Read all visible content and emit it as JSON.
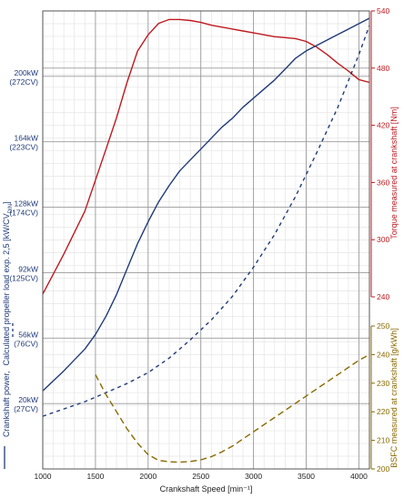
{
  "chart_data": {
    "type": "line",
    "xlabel": "Crankshaft Speed [min⁻¹]",
    "xlim": [
      1000,
      4100
    ],
    "x_ticks": [
      1000,
      1500,
      2000,
      2500,
      3000,
      3500,
      4000
    ],
    "left_axis": {
      "label_part1": "Crankshaft power,",
      "label_part2": "Calculated propeller load exp. 2,5 [kW/CV",
      "label_sub": "DIN",
      "label_close": "]",
      "range_kw": [
        -16,
        236
      ],
      "ticks": [
        {
          "kw": 200,
          "line1": "200kW",
          "line2": "(272CV)"
        },
        {
          "kw": 164,
          "line1": "164kW",
          "line2": "(223CV)"
        },
        {
          "kw": 128,
          "line1": "128kW",
          "line2": "(174CV)"
        },
        {
          "kw": 92,
          "line1": "92kW",
          "line2": "(125CV)"
        },
        {
          "kw": 56,
          "line1": "56kW",
          "line2": "(76CV)"
        },
        {
          "kw": 20,
          "line1": "20kW",
          "line2": "(27CV)"
        }
      ],
      "color": "#1f3a7a"
    },
    "torque_axis": {
      "label": "Torque measured at crankshaft [Nm]",
      "range": [
        240,
        540
      ],
      "ticks": [
        240,
        300,
        360,
        420,
        480,
        540
      ],
      "color": "#c0191f"
    },
    "bsfc_axis": {
      "label": "BSFC measured at crankshaft [g/kWh]",
      "range": [
        200,
        250
      ],
      "ticks": [
        200,
        210,
        220,
        230,
        240,
        250
      ],
      "color": "#8a6a00"
    },
    "series": [
      {
        "axis": "torque",
        "color": "#c0191f",
        "dash": "",
        "points": [
          [
            1000,
            243
          ],
          [
            1200,
            285
          ],
          [
            1400,
            330
          ],
          [
            1600,
            395
          ],
          [
            1700,
            428
          ],
          [
            1800,
            465
          ],
          [
            1900,
            498
          ],
          [
            2000,
            515
          ],
          [
            2100,
            527
          ],
          [
            2200,
            531
          ],
          [
            2300,
            531
          ],
          [
            2400,
            530
          ],
          [
            2500,
            528
          ],
          [
            2600,
            525
          ],
          [
            2700,
            523
          ],
          [
            2800,
            521
          ],
          [
            2900,
            519
          ],
          [
            3000,
            517
          ],
          [
            3100,
            515
          ],
          [
            3200,
            513
          ],
          [
            3300,
            512
          ],
          [
            3400,
            511
          ],
          [
            3500,
            508
          ],
          [
            3600,
            502
          ],
          [
            3700,
            494
          ],
          [
            3800,
            485
          ],
          [
            3900,
            477
          ],
          [
            4000,
            468
          ],
          [
            4100,
            465
          ]
        ]
      },
      {
        "axis": "power",
        "color": "#1f3a7a",
        "dash": "",
        "points": [
          [
            1000,
            27
          ],
          [
            1200,
            38
          ],
          [
            1400,
            50
          ],
          [
            1500,
            58
          ],
          [
            1600,
            68
          ],
          [
            1700,
            80
          ],
          [
            1800,
            94
          ],
          [
            1900,
            108
          ],
          [
            2000,
            120
          ],
          [
            2100,
            131
          ],
          [
            2200,
            140
          ],
          [
            2300,
            148
          ],
          [
            2400,
            154
          ],
          [
            2500,
            160
          ],
          [
            2600,
            166
          ],
          [
            2700,
            172
          ],
          [
            2800,
            177
          ],
          [
            2900,
            183
          ],
          [
            3000,
            188
          ],
          [
            3100,
            193
          ],
          [
            3200,
            198
          ],
          [
            3300,
            204
          ],
          [
            3400,
            210
          ],
          [
            3500,
            214
          ],
          [
            3600,
            217
          ],
          [
            3700,
            220
          ],
          [
            3800,
            223
          ],
          [
            3900,
            226
          ],
          [
            4000,
            229
          ],
          [
            4100,
            232
          ]
        ]
      },
      {
        "axis": "power",
        "color": "#1f3a7a",
        "dash": "4,4",
        "points": [
          [
            1000,
            13
          ],
          [
            1200,
            17
          ],
          [
            1400,
            21
          ],
          [
            1600,
            26
          ],
          [
            1800,
            31
          ],
          [
            2000,
            37
          ],
          [
            2200,
            45
          ],
          [
            2400,
            55
          ],
          [
            2600,
            66
          ],
          [
            2800,
            79
          ],
          [
            3000,
            95
          ],
          [
            3200,
            113
          ],
          [
            3400,
            134
          ],
          [
            3600,
            158
          ],
          [
            3800,
            183
          ],
          [
            4000,
            212
          ],
          [
            4100,
            228
          ]
        ]
      },
      {
        "axis": "bsfc",
        "color": "#8a6a00",
        "dash": "7,4",
        "points": [
          [
            1500,
            233
          ],
          [
            1600,
            226
          ],
          [
            1700,
            220
          ],
          [
            1800,
            214
          ],
          [
            1900,
            209
          ],
          [
            2000,
            205
          ],
          [
            2100,
            203
          ],
          [
            2200,
            202.5
          ],
          [
            2300,
            202.4
          ],
          [
            2400,
            202.6
          ],
          [
            2500,
            203.2
          ],
          [
            2600,
            204.3
          ],
          [
            2700,
            206
          ],
          [
            2800,
            208
          ],
          [
            2900,
            210.5
          ],
          [
            3000,
            213
          ],
          [
            3200,
            218
          ],
          [
            3400,
            223
          ],
          [
            3600,
            228
          ],
          [
            3800,
            233
          ],
          [
            4000,
            238
          ],
          [
            4100,
            240
          ]
        ]
      }
    ]
  },
  "colors": {
    "grid_major": "#9a9a9a",
    "grid_minor": "#e4e4e4",
    "axis_text": "#222222"
  }
}
